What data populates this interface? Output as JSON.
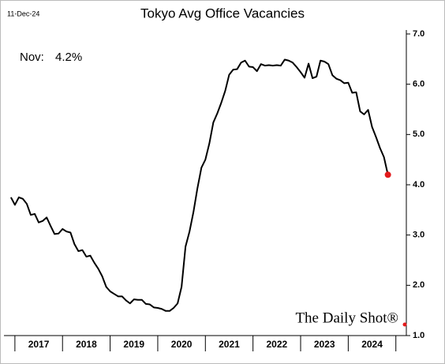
{
  "chart_data": {
    "type": "line",
    "title": "Tokyo Avg Office Vacancies",
    "date": "11-Dec-24",
    "annotation_label": "Nov:",
    "annotation_value": "4.2%",
    "source": "The Daily Shot®",
    "categories": [
      "2017",
      "2018",
      "2019",
      "2020",
      "2021",
      "2022",
      "2023",
      "2024"
    ],
    "x": [
      2016.917,
      2017.0,
      2017.083,
      2017.167,
      2017.25,
      2017.333,
      2017.417,
      2017.5,
      2017.583,
      2017.667,
      2017.75,
      2017.833,
      2017.917,
      2018.0,
      2018.083,
      2018.167,
      2018.25,
      2018.333,
      2018.417,
      2018.5,
      2018.583,
      2018.667,
      2018.75,
      2018.833,
      2018.917,
      2019.0,
      2019.083,
      2019.167,
      2019.25,
      2019.333,
      2019.417,
      2019.5,
      2019.583,
      2019.667,
      2019.75,
      2019.833,
      2019.917,
      2020.0,
      2020.083,
      2020.167,
      2020.25,
      2020.333,
      2020.417,
      2020.5,
      2020.583,
      2020.667,
      2020.75,
      2020.833,
      2020.917,
      2021.0,
      2021.083,
      2021.167,
      2021.25,
      2021.333,
      2021.417,
      2021.5,
      2021.583,
      2021.667,
      2021.75,
      2021.833,
      2021.917,
      2022.0,
      2022.083,
      2022.167,
      2022.25,
      2022.333,
      2022.417,
      2022.5,
      2022.583,
      2022.667,
      2022.75,
      2022.833,
      2022.917,
      2023.0,
      2023.083,
      2023.167,
      2023.25,
      2023.333,
      2023.417,
      2023.5,
      2023.583,
      2023.667,
      2023.75,
      2023.833,
      2023.917,
      2024.0,
      2024.083,
      2024.167,
      2024.25,
      2024.333,
      2024.417,
      2024.5,
      2024.583,
      2024.667,
      2024.75,
      2024.833
    ],
    "values": [
      3.75,
      3.6,
      3.75,
      3.72,
      3.62,
      3.4,
      3.42,
      3.25,
      3.28,
      3.35,
      3.18,
      3.02,
      3.03,
      3.12,
      3.07,
      3.05,
      2.82,
      2.68,
      2.7,
      2.57,
      2.59,
      2.45,
      2.33,
      2.18,
      1.97,
      1.88,
      1.83,
      1.78,
      1.78,
      1.7,
      1.64,
      1.72,
      1.71,
      1.71,
      1.63,
      1.62,
      1.56,
      1.55,
      1.53,
      1.49,
      1.49,
      1.55,
      1.64,
      1.97,
      2.77,
      3.07,
      3.46,
      3.93,
      4.34,
      4.5,
      4.82,
      5.24,
      5.42,
      5.63,
      5.87,
      6.19,
      6.29,
      6.3,
      6.43,
      6.47,
      6.35,
      6.34,
      6.26,
      6.4,
      6.37,
      6.38,
      6.37,
      6.38,
      6.37,
      6.49,
      6.47,
      6.43,
      6.34,
      6.24,
      6.13,
      6.41,
      6.12,
      6.15,
      6.47,
      6.45,
      6.4,
      6.18,
      6.11,
      6.08,
      6.02,
      6.03,
      5.83,
      5.84,
      5.46,
      5.4,
      5.49,
      5.15,
      4.95,
      4.73,
      4.55,
      4.2
    ],
    "color": "#000000",
    "end_marker_color": "#e31a1c",
    "xlim": [
      2016.77,
      2025.22
    ],
    "ylim": [
      1.0,
      7.0
    ],
    "yticks": [
      {
        "value": 1,
        "label": "1.0"
      },
      {
        "value": 2,
        "label": "2.0"
      },
      {
        "value": 3,
        "label": "3.0"
      },
      {
        "value": 4,
        "label": "4.0"
      },
      {
        "value": 5,
        "label": "5.0"
      },
      {
        "value": 6,
        "label": "6.0"
      },
      {
        "value": 7,
        "label": "7.0"
      }
    ],
    "grid": false
  }
}
